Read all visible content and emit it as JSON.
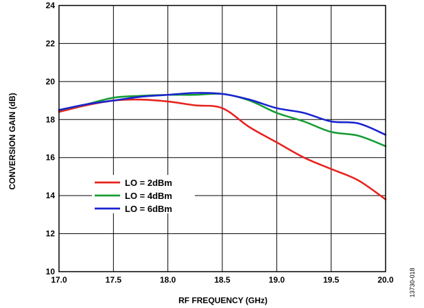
{
  "chart_data": {
    "type": "line",
    "xlabel": "RF FREQUENCY (GHz)",
    "ylabel": "CONVERSION GAIN (dB)",
    "xlim": [
      17.0,
      20.0
    ],
    "ylim": [
      10,
      24
    ],
    "x_ticks": [
      17.0,
      17.5,
      18.0,
      18.5,
      19.0,
      19.5,
      20.0
    ],
    "x_tick_labels": [
      "17.0",
      "17.5",
      "18.0",
      "18.5",
      "19.0",
      "19.5",
      "20.0"
    ],
    "y_ticks": [
      10,
      12,
      14,
      16,
      18,
      20,
      22,
      24
    ],
    "y_tick_labels": [
      "10",
      "12",
      "14",
      "16",
      "18",
      "20",
      "22",
      "24"
    ],
    "grid": true,
    "legend_placement": "lower-left",
    "figure_id": "13730-018",
    "series": [
      {
        "name": "LO = 2dBm",
        "color": "#e8221e",
        "x": [
          17.0,
          17.25,
          17.5,
          17.75,
          18.0,
          18.25,
          18.5,
          18.75,
          19.0,
          19.25,
          19.5,
          19.75,
          20.0
        ],
        "y": [
          18.4,
          18.75,
          19.0,
          19.05,
          18.95,
          18.75,
          18.6,
          17.6,
          16.8,
          16.0,
          15.4,
          14.8,
          13.8
        ]
      },
      {
        "name": "LO = 4dBm",
        "color": "#179c36",
        "x": [
          17.0,
          17.25,
          17.5,
          17.75,
          18.0,
          18.25,
          18.5,
          18.75,
          19.0,
          19.25,
          19.5,
          19.75,
          20.0
        ],
        "y": [
          18.5,
          18.8,
          19.15,
          19.25,
          19.3,
          19.3,
          19.35,
          19.0,
          18.35,
          17.9,
          17.35,
          17.15,
          16.6
        ]
      },
      {
        "name": "LO = 6dBm",
        "color": "#1a23cf",
        "x": [
          17.0,
          17.25,
          17.5,
          17.75,
          18.0,
          18.25,
          18.5,
          18.75,
          19.0,
          19.25,
          19.5,
          19.75,
          20.0
        ],
        "y": [
          18.5,
          18.8,
          19.0,
          19.2,
          19.3,
          19.4,
          19.35,
          19.05,
          18.6,
          18.35,
          17.9,
          17.8,
          17.2
        ]
      }
    ]
  }
}
